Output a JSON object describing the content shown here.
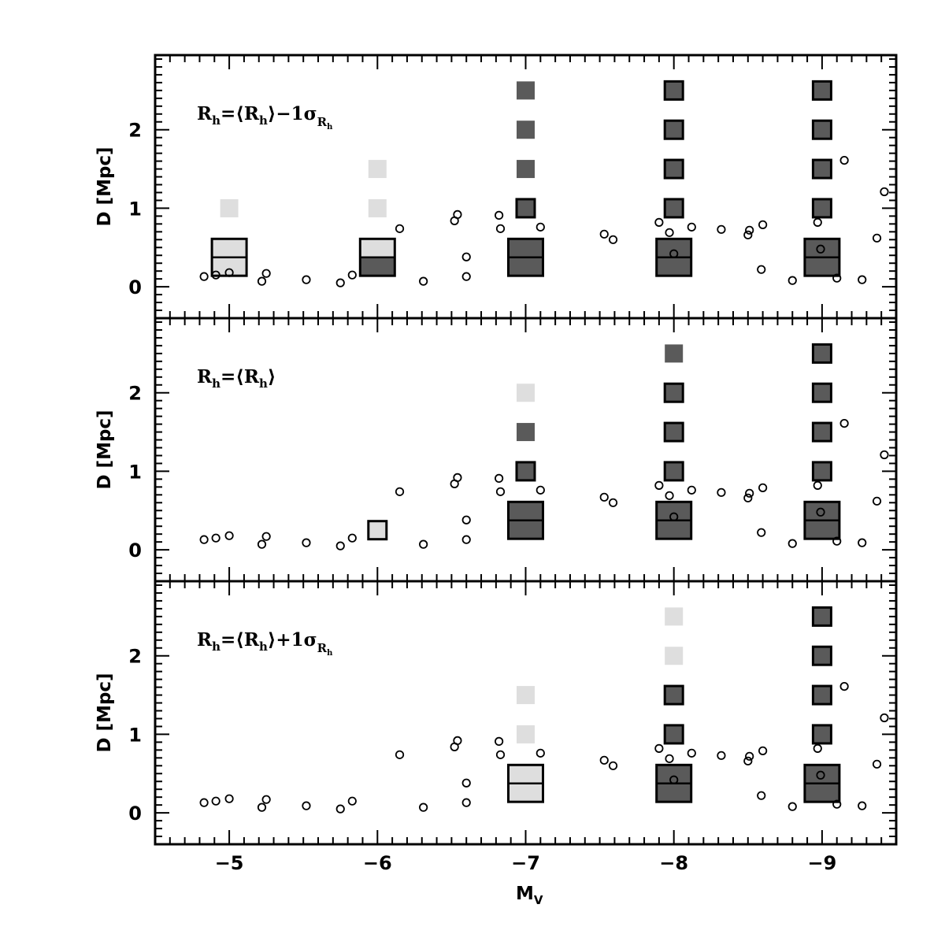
{
  "chart_data": {
    "type": "scatter",
    "xlabel": "M",
    "xlabel_sub": "V",
    "ylabel": "D [Mpc]",
    "xlim": [
      -4.5,
      -9.5
    ],
    "ylim": [
      -0.4,
      2.95
    ],
    "x_ticks": [
      -5,
      -6,
      -7,
      -8,
      -9
    ],
    "y_ticks": [
      0,
      1,
      2
    ],
    "colors": {
      "dark": "#5a5a5a",
      "light": "#dedede",
      "outline": "#000000"
    },
    "observed_points": [
      [
        -4.83,
        0.13
      ],
      [
        -4.91,
        0.15
      ],
      [
        -5.0,
        0.18
      ],
      [
        -5.22,
        0.07
      ],
      [
        -5.25,
        0.17
      ],
      [
        -5.52,
        0.09
      ],
      [
        -5.75,
        0.05
      ],
      [
        -5.83,
        0.15
      ],
      [
        -6.15,
        0.74
      ],
      [
        -6.31,
        0.07
      ],
      [
        -6.52,
        0.84
      ],
      [
        -6.54,
        0.92
      ],
      [
        -6.6,
        0.38
      ],
      [
        -6.6,
        0.13
      ],
      [
        -6.82,
        0.91
      ],
      [
        -6.83,
        0.74
      ],
      [
        -7.1,
        0.76
      ],
      [
        -7.53,
        0.67
      ],
      [
        -7.59,
        0.6
      ],
      [
        -7.9,
        0.82
      ],
      [
        -7.97,
        0.69
      ],
      [
        -8.0,
        0.42
      ],
      [
        -8.12,
        0.76
      ],
      [
        -8.32,
        0.73
      ],
      [
        -8.5,
        0.66
      ],
      [
        -8.51,
        0.72
      ],
      [
        -8.59,
        0.22
      ],
      [
        -8.6,
        0.79
      ],
      [
        -8.8,
        0.08
      ],
      [
        -8.97,
        0.82
      ],
      [
        -8.99,
        0.48
      ],
      [
        -9.1,
        0.11
      ],
      [
        -9.15,
        1.61
      ],
      [
        -9.27,
        0.09
      ],
      [
        -9.37,
        0.62
      ],
      [
        -9.42,
        1.21
      ]
    ],
    "panels": [
      {
        "label_main": "R",
        "label_main_sub": "h",
        "label_mid": "=⟨R",
        "label_mid_sub": "h",
        "label_tail": "⟩−1σ",
        "label_tail_sub": "R",
        "label_tail_subsub": "h",
        "boxes": [
          {
            "mv": -5,
            "style": "light",
            "outlined": true
          },
          {
            "mv": -6,
            "style": "split",
            "outlined": true
          },
          {
            "mv": -7,
            "style": "dark",
            "outlined": true
          },
          {
            "mv": -8,
            "style": "dark",
            "outlined": true
          },
          {
            "mv": -9,
            "style": "dark",
            "outlined": true
          }
        ],
        "squares": [
          {
            "mv": -5,
            "d": 1.0,
            "style": "light",
            "outlined": false
          },
          {
            "mv": -6,
            "d": 1.0,
            "style": "light",
            "outlined": false
          },
          {
            "mv": -6,
            "d": 1.5,
            "style": "light",
            "outlined": false
          },
          {
            "mv": -7,
            "d": 1.0,
            "style": "dark",
            "outlined": true
          },
          {
            "mv": -7,
            "d": 1.5,
            "style": "dark",
            "outlined": false
          },
          {
            "mv": -7,
            "d": 2.0,
            "style": "dark",
            "outlined": false
          },
          {
            "mv": -7,
            "d": 2.5,
            "style": "dark",
            "outlined": false
          },
          {
            "mv": -8,
            "d": 1.0,
            "style": "dark",
            "outlined": true
          },
          {
            "mv": -8,
            "d": 1.5,
            "style": "dark",
            "outlined": true
          },
          {
            "mv": -8,
            "d": 2.0,
            "style": "dark",
            "outlined": true
          },
          {
            "mv": -8,
            "d": 2.5,
            "style": "dark",
            "outlined": true
          },
          {
            "mv": -9,
            "d": 1.0,
            "style": "dark",
            "outlined": true
          },
          {
            "mv": -9,
            "d": 1.5,
            "style": "dark",
            "outlined": true
          },
          {
            "mv": -9,
            "d": 2.0,
            "style": "dark",
            "outlined": true
          },
          {
            "mv": -9,
            "d": 2.5,
            "style": "dark",
            "outlined": true
          }
        ]
      },
      {
        "label_main": "R",
        "label_main_sub": "h",
        "label_mid": "=⟨R",
        "label_mid_sub": "h",
        "label_tail": "⟩",
        "label_tail_sub": "",
        "label_tail_subsub": "",
        "boxes": [
          {
            "mv": -7,
            "style": "dark",
            "outlined": true
          },
          {
            "mv": -8,
            "style": "dark",
            "outlined": true
          },
          {
            "mv": -9,
            "style": "dark",
            "outlined": true
          }
        ],
        "squares": [
          {
            "mv": -6,
            "d": 0.25,
            "style": "light",
            "outlined": true
          },
          {
            "mv": -7,
            "d": 1.0,
            "style": "dark",
            "outlined": true
          },
          {
            "mv": -7,
            "d": 1.5,
            "style": "dark",
            "outlined": false
          },
          {
            "mv": -7,
            "d": 2.0,
            "style": "light",
            "outlined": false
          },
          {
            "mv": -8,
            "d": 1.0,
            "style": "dark",
            "outlined": true
          },
          {
            "mv": -8,
            "d": 1.5,
            "style": "dark",
            "outlined": true
          },
          {
            "mv": -8,
            "d": 2.0,
            "style": "dark",
            "outlined": true
          },
          {
            "mv": -8,
            "d": 2.5,
            "style": "dark",
            "outlined": false
          },
          {
            "mv": -9,
            "d": 1.0,
            "style": "dark",
            "outlined": true
          },
          {
            "mv": -9,
            "d": 1.5,
            "style": "dark",
            "outlined": true
          },
          {
            "mv": -9,
            "d": 2.0,
            "style": "dark",
            "outlined": true
          },
          {
            "mv": -9,
            "d": 2.5,
            "style": "dark",
            "outlined": true
          }
        ]
      },
      {
        "label_main": "R",
        "label_main_sub": "h",
        "label_mid": "=⟨R",
        "label_mid_sub": "h",
        "label_tail": "⟩+1σ",
        "label_tail_sub": "R",
        "label_tail_subsub": "h",
        "boxes": [
          {
            "mv": -7,
            "style": "light",
            "outlined": true
          },
          {
            "mv": -8,
            "style": "dark",
            "outlined": true
          },
          {
            "mv": -9,
            "style": "dark",
            "outlined": true
          }
        ],
        "squares": [
          {
            "mv": -7,
            "d": 1.0,
            "style": "light",
            "outlined": false
          },
          {
            "mv": -7,
            "d": 1.5,
            "style": "light",
            "outlined": false
          },
          {
            "mv": -8,
            "d": 1.0,
            "style": "dark",
            "outlined": true
          },
          {
            "mv": -8,
            "d": 1.5,
            "style": "dark",
            "outlined": true
          },
          {
            "mv": -8,
            "d": 2.0,
            "style": "light",
            "outlined": false
          },
          {
            "mv": -8,
            "d": 2.5,
            "style": "light",
            "outlined": false
          },
          {
            "mv": -9,
            "d": 1.0,
            "style": "dark",
            "outlined": true
          },
          {
            "mv": -9,
            "d": 1.5,
            "style": "dark",
            "outlined": true
          },
          {
            "mv": -9,
            "d": 2.0,
            "style": "dark",
            "outlined": true
          },
          {
            "mv": -9,
            "d": 2.5,
            "style": "dark",
            "outlined": true
          }
        ]
      }
    ]
  }
}
